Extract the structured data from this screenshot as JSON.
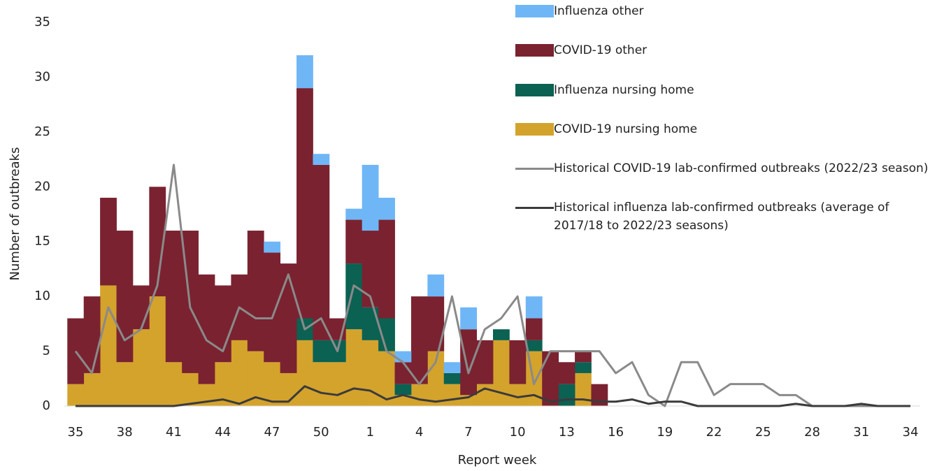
{
  "chart_data": {
    "type": "bar",
    "x_label": "Report week",
    "y_label": "Number of outbreaks",
    "categories": [
      "35",
      null,
      null,
      "38",
      null,
      null,
      "41",
      null,
      null,
      "44",
      null,
      null,
      "47",
      null,
      null,
      "50",
      null,
      null,
      "1",
      null,
      null,
      "4",
      null,
      null,
      "7",
      null,
      null,
      "10",
      null,
      null,
      "13",
      null,
      null,
      "16",
      null,
      null,
      "19",
      null,
      null,
      "22",
      null,
      null,
      "25",
      null,
      null,
      "28",
      null,
      null,
      "31",
      null,
      null,
      "34"
    ],
    "ylim": [
      0,
      35
    ],
    "yticks": [
      0,
      5,
      10,
      15,
      20,
      25,
      30,
      35
    ],
    "grid": false,
    "series": [
      {
        "name": "COVID-19 nursing home",
        "type": "bar",
        "color": "#d4a32c",
        "values": [
          2,
          3,
          11,
          4,
          7,
          10,
          4,
          3,
          2,
          4,
          6,
          5,
          4,
          3,
          6,
          4,
          4,
          7,
          6,
          5,
          1,
          2,
          5,
          2,
          1,
          2,
          6,
          2,
          5,
          0,
          0,
          3,
          0,
          0,
          0,
          0,
          0,
          0,
          0,
          0,
          0,
          0,
          0,
          0,
          0,
          0,
          0,
          0,
          0,
          0,
          0,
          0
        ]
      },
      {
        "name": "Influenza nursing home",
        "type": "bar",
        "color": "#0b6152",
        "values": [
          0,
          0,
          0,
          0,
          0,
          0,
          0,
          0,
          0,
          0,
          0,
          0,
          0,
          0,
          2,
          2,
          2,
          6,
          3,
          3,
          1,
          0,
          0,
          1,
          0,
          0,
          1,
          0,
          1,
          0,
          2,
          1,
          0,
          0,
          0,
          0,
          0,
          0,
          0,
          0,
          0,
          0,
          0,
          0,
          0,
          0,
          0,
          0,
          0,
          0,
          0,
          0
        ]
      },
      {
        "name": "COVID-19 other",
        "type": "bar",
        "color": "#7a2230",
        "values": [
          6,
          7,
          8,
          12,
          4,
          10,
          12,
          13,
          10,
          7,
          6,
          11,
          10,
          10,
          21,
          16,
          2,
          4,
          7,
          9,
          2,
          8,
          5,
          0,
          6,
          4,
          0,
          4,
          2,
          5,
          2,
          1,
          2,
          0,
          0,
          0,
          0,
          0,
          0,
          0,
          0,
          0,
          0,
          0,
          0,
          0,
          0,
          0,
          0,
          0,
          0,
          0
        ]
      },
      {
        "name": "Influenza other",
        "type": "bar",
        "color": "#6fb6f6",
        "values": [
          0,
          0,
          0,
          0,
          0,
          0,
          0,
          0,
          0,
          0,
          0,
          0,
          1,
          0,
          3,
          1,
          0,
          1,
          6,
          2,
          1,
          0,
          2,
          1,
          2,
          0,
          0,
          0,
          2,
          0,
          0,
          0,
          0,
          0,
          0,
          0,
          0,
          0,
          0,
          0,
          0,
          0,
          0,
          0,
          0,
          0,
          0,
          0,
          0,
          0,
          0,
          0
        ]
      },
      {
        "name": "Historical COVID-19 lab-confirmed outbreaks (2022/23 season)",
        "type": "line",
        "color": "#8a8a8a",
        "values": [
          5,
          3,
          9,
          6,
          7,
          11,
          22,
          9,
          6,
          5,
          9,
          8,
          8,
          12,
          7,
          8,
          5,
          11,
          10,
          5,
          4,
          2,
          4,
          10,
          3,
          7,
          8,
          10,
          2,
          5,
          5,
          5,
          5,
          3,
          4,
          1,
          0,
          4,
          4,
          1,
          2,
          2,
          2,
          1,
          1,
          0,
          0,
          0,
          0,
          0,
          0,
          0
        ]
      },
      {
        "name": "Historical influenza lab-confirmed outbreaks (average of 2017/18 to 2022/23 seasons)",
        "type": "line",
        "color": "#3b3b3b",
        "values": [
          0,
          0,
          0,
          0,
          0,
          0,
          0,
          0.2,
          0.4,
          0.6,
          0.2,
          0.8,
          0.4,
          0.4,
          1.8,
          1.2,
          1,
          1.6,
          1.4,
          0.6,
          1,
          0.6,
          0.4,
          0.6,
          0.8,
          1.6,
          1.2,
          0.8,
          1,
          0.4,
          0.6,
          0.6,
          0.4,
          0.4,
          0.6,
          0.2,
          0.4,
          0.4,
          0,
          0,
          0,
          0,
          0,
          0,
          0.2,
          0,
          0,
          0,
          0.2,
          0,
          0,
          0
        ]
      }
    ]
  }
}
